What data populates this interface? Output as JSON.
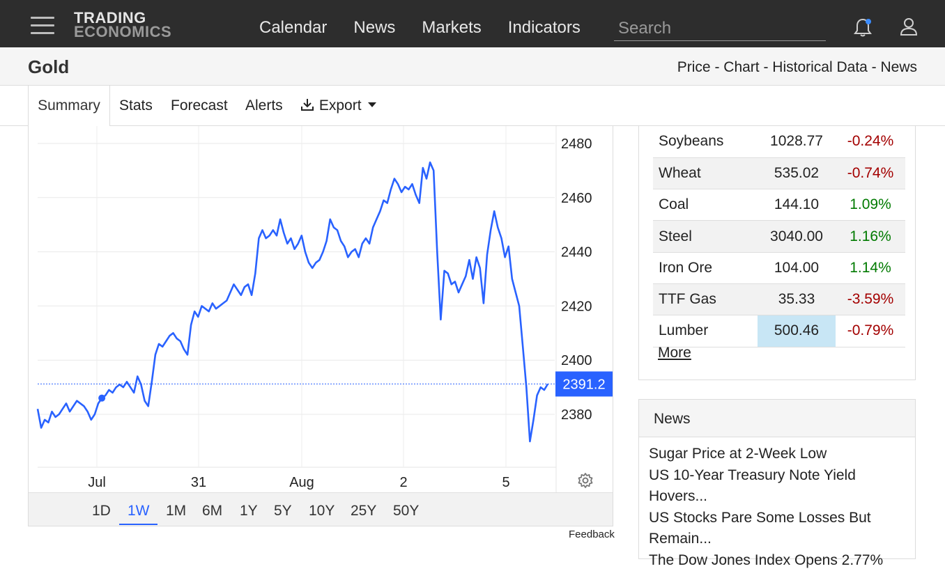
{
  "nav": {
    "logo_line1": "TRADING",
    "logo_line2": "ECONOMICS",
    "links": [
      "Calendar",
      "News",
      "Markets",
      "Indicators"
    ],
    "search_placeholder": "Search"
  },
  "header": {
    "title": "Gold",
    "breadcrumb": "Price - Chart - Historical Data - News"
  },
  "tabs": [
    "Summary",
    "Stats",
    "Forecast",
    "Alerts",
    "Export"
  ],
  "chart_data": {
    "type": "line",
    "x_tick_labels": [
      "Jul",
      "31",
      "Aug",
      "2",
      "5"
    ],
    "y_ticks": [
      2380,
      2400,
      2420,
      2440,
      2460,
      2480
    ],
    "ylim": [
      2368,
      2483
    ],
    "last_value": 2391.2,
    "last_value_label": "2391.2",
    "series_color": "#2962ff",
    "series": [
      {
        "values": [
          2382,
          2375,
          2378,
          2377,
          2381,
          2379,
          2380,
          2382,
          2384,
          2381,
          2383,
          2385,
          2384,
          2383,
          2381,
          2378,
          2380,
          2384,
          2386,
          2387,
          2389,
          2388,
          2390,
          2391,
          2390,
          2392,
          2390,
          2388,
          2394,
          2391,
          2385,
          2383,
          2392,
          2402,
          2406,
          2405,
          2407,
          2409,
          2410,
          2408,
          2407,
          2404,
          2402,
          2413,
          2418,
          2416,
          2420,
          2419,
          2418,
          2421,
          2419,
          2420,
          2421,
          2422,
          2425,
          2428,
          2426,
          2424,
          2427,
          2428,
          2424,
          2432,
          2445,
          2448,
          2445,
          2446,
          2448,
          2446,
          2452,
          2447,
          2443,
          2445,
          2441,
          2443,
          2446,
          2440,
          2436,
          2434,
          2436,
          2437,
          2440,
          2444,
          2452,
          2449,
          2448,
          2444,
          2442,
          2438,
          2440,
          2441,
          2438,
          2443,
          2445,
          2443,
          2449,
          2452,
          2455,
          2459,
          2458,
          2463,
          2467,
          2465,
          2462,
          2464,
          2463,
          2465,
          2461,
          2458,
          2471,
          2467,
          2473,
          2470,
          2440,
          2415,
          2433,
          2432,
          2428,
          2429,
          2425,
          2428,
          2431,
          2437,
          2430,
          2438,
          2434,
          2421,
          2439,
          2448,
          2455,
          2449,
          2445,
          2438,
          2442,
          2430,
          2425,
          2420,
          2405,
          2390,
          2370,
          2378,
          2387,
          2390,
          2389,
          2391.2
        ]
      }
    ]
  },
  "ranges": [
    "1D",
    "1W",
    "1M",
    "6M",
    "1Y",
    "5Y",
    "10Y",
    "25Y",
    "50Y"
  ],
  "active_range": "1W",
  "feedback": "Feedback",
  "commodities": [
    {
      "name": "Soybeans",
      "price": "1028.77",
      "change": "-0.24%"
    },
    {
      "name": "Wheat",
      "price": "535.02",
      "change": "-0.74%"
    },
    {
      "name": "Coal",
      "price": "144.10",
      "change": "1.09%"
    },
    {
      "name": "Steel",
      "price": "3040.00",
      "change": "1.16%"
    },
    {
      "name": "Iron Ore",
      "price": "104.00",
      "change": "1.14%"
    },
    {
      "name": "TTF Gas",
      "price": "35.33",
      "change": "-3.59%"
    },
    {
      "name": "Lumber",
      "price": "500.46",
      "change": "-0.79%"
    }
  ],
  "more_label": "More",
  "news": {
    "title": "News",
    "items": [
      "Sugar Price at 2-Week Low",
      "US 10-Year Treasury Note Yield Hovers...",
      "US Stocks Pare Some Losses But Remain...",
      "The Dow Jones Index Opens 2.77%"
    ]
  }
}
